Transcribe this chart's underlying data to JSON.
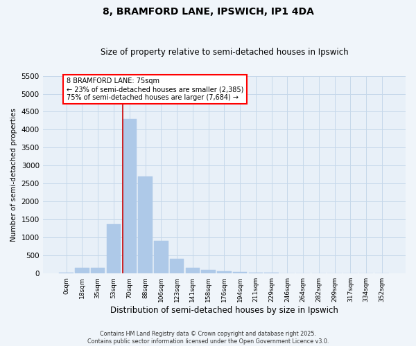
{
  "title1": "8, BRAMFORD LANE, IPSWICH, IP1 4DA",
  "title2": "Size of property relative to semi-detached houses in Ipswich",
  "xlabel": "Distribution of semi-detached houses by size in Ipswich",
  "ylabel": "Number of semi-detached properties",
  "bin_labels": [
    "0sqm",
    "18sqm",
    "35sqm",
    "53sqm",
    "70sqm",
    "88sqm",
    "106sqm",
    "123sqm",
    "141sqm",
    "158sqm",
    "176sqm",
    "194sqm",
    "211sqm",
    "229sqm",
    "246sqm",
    "264sqm",
    "282sqm",
    "299sqm",
    "317sqm",
    "334sqm",
    "352sqm"
  ],
  "bar_values": [
    30,
    150,
    155,
    1380,
    4300,
    2700,
    900,
    400,
    155,
    100,
    65,
    50,
    30,
    15,
    10,
    5,
    3,
    2,
    1,
    1,
    0
  ],
  "highlight_bin": 4,
  "bar_color": "#aec9e8",
  "highlight_line_color": "#cc0000",
  "grid_color": "#c5d8ea",
  "bg_color": "#e8f0f8",
  "fig_bg_color": "#f0f5fa",
  "ylim": [
    0,
    5500
  ],
  "yticks": [
    0,
    500,
    1000,
    1500,
    2000,
    2500,
    3000,
    3500,
    4000,
    4500,
    5000,
    5500
  ],
  "property_size": 75,
  "pct_smaller": 23,
  "count_smaller": 2385,
  "pct_larger": 75,
  "count_larger": 7684,
  "footer1": "Contains HM Land Registry data © Crown copyright and database right 2025.",
  "footer2": "Contains public sector information licensed under the Open Government Licence v3.0."
}
